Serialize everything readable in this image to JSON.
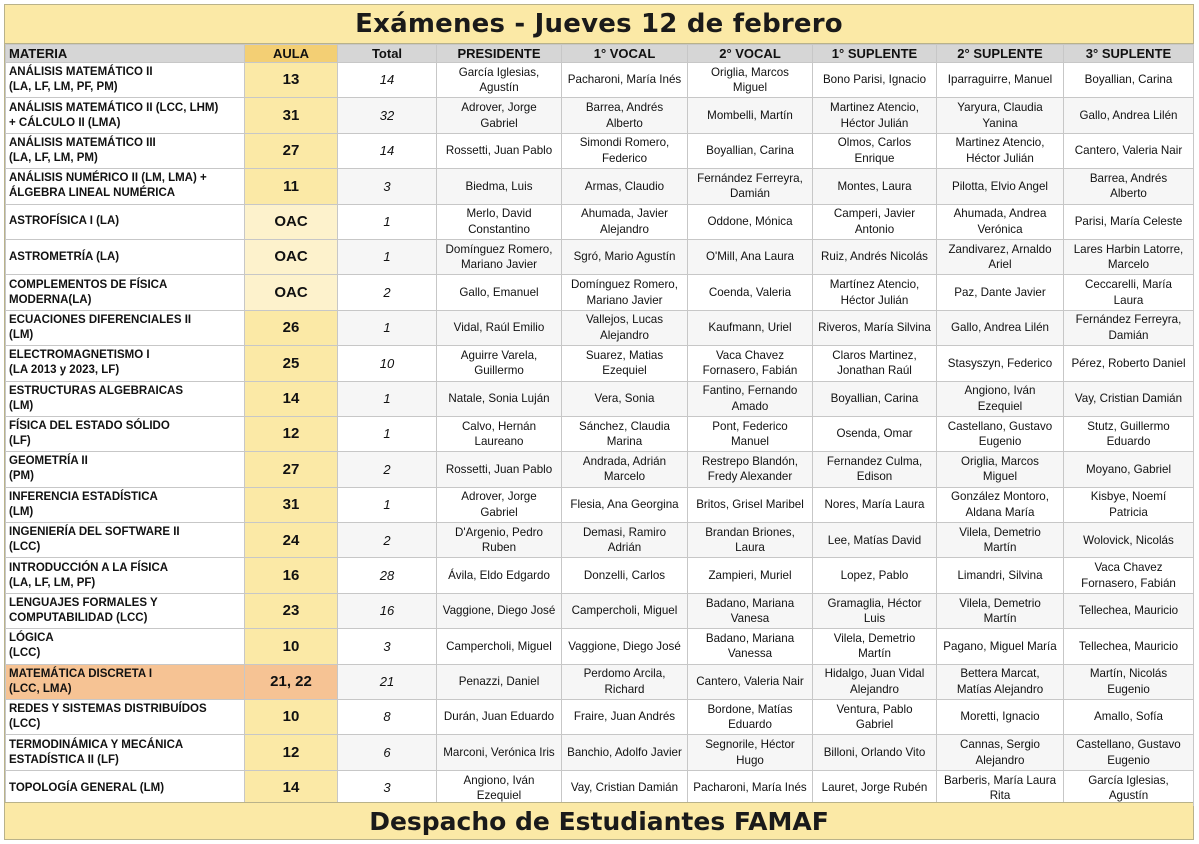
{
  "title": "Exámenes - Jueves 12 de febrero",
  "footer": "Despacho de Estudiantes FAMAF",
  "colors": {
    "header_bg": "#fbe9a6",
    "aula_bg": "#f3cf74",
    "highlight_bg": "#f6c394"
  },
  "headers": [
    "MATERIA",
    "AULA",
    "Total",
    "PRESIDENTE",
    "1° VOCAL",
    "2° VOCAL",
    "1° SUPLENTE",
    "2° SUPLENTE",
    "3° SUPLENTE"
  ],
  "rows": [
    {
      "materia": [
        "ANÁLISIS MATEMÁTICO II",
        "(LA, LF, LM, PF, PM)"
      ],
      "aula": "13",
      "total": "14",
      "presidente": [
        "García Iglesias,",
        "Agustín"
      ],
      "vocal1": [
        "Pacharoni, María Inés"
      ],
      "vocal2": [
        "Origlia, Marcos",
        "Miguel"
      ],
      "suplente1": [
        "Bono Parisi, Ignacio"
      ],
      "suplente2": [
        "Iparraguirre, Manuel"
      ],
      "suplente3": [
        "Boyallian, Carina"
      ]
    },
    {
      "materia": [
        "ANÁLISIS MATEMÁTICO II (LCC, LHM)",
        "+ CÁLCULO II (LMA)"
      ],
      "aula": "31",
      "total": "32",
      "presidente": [
        "Adrover, Jorge",
        "Gabriel"
      ],
      "vocal1": [
        "Barrea, Andrés",
        "Alberto"
      ],
      "vocal2": [
        "Mombelli, Martín"
      ],
      "suplente1": [
        "Martinez Atencio,",
        "Héctor Julián"
      ],
      "suplente2": [
        "Yaryura, Claudia",
        "Yanina"
      ],
      "suplente3": [
        "Gallo, Andrea Lilén"
      ]
    },
    {
      "materia": [
        "ANÁLISIS MATEMÁTICO III",
        "(LA, LF, LM, PM)"
      ],
      "aula": "27",
      "total": "14",
      "presidente": [
        "Rossetti, Juan Pablo"
      ],
      "vocal1": [
        "Simondi Romero,",
        "Federico"
      ],
      "vocal2": [
        "Boyallian, Carina"
      ],
      "suplente1": [
        "Olmos, Carlos",
        "Enrique"
      ],
      "suplente2": [
        "Martinez Atencio,",
        "Héctor Julián"
      ],
      "suplente3": [
        "Cantero, Valeria Nair"
      ]
    },
    {
      "materia": [
        "ANÁLISIS NUMÉRICO II  (LM, LMA)  +",
        "ÁLGEBRA LINEAL NUMÉRICA"
      ],
      "aula": "11",
      "total": "3",
      "presidente": [
        "Biedma, Luis"
      ],
      "vocal1": [
        "Armas, Claudio"
      ],
      "vocal2": [
        "Fernández Ferreyra,",
        "Damián"
      ],
      "suplente1": [
        "Montes, Laura"
      ],
      "suplente2": [
        "Pilotta, Elvio Angel"
      ],
      "suplente3": [
        "Barrea, Andrés",
        "Alberto"
      ]
    },
    {
      "materia": [
        "ASTROFÍSICA I (LA)"
      ],
      "aula": "OAC",
      "total": "1",
      "presidente": [
        "Merlo, David",
        "Constantino"
      ],
      "vocal1": [
        "Ahumada, Javier",
        "Alejandro"
      ],
      "vocal2": [
        "Oddone, Mónica"
      ],
      "suplente1": [
        "Camperi, Javier",
        "Antonio"
      ],
      "suplente2": [
        "Ahumada, Andrea",
        "Verónica"
      ],
      "suplente3": [
        "Parisi, María Celeste"
      ]
    },
    {
      "materia": [
        "ASTROMETRÍA (LA)"
      ],
      "aula": "OAC",
      "total": "1",
      "presidente": [
        "Domínguez Romero,",
        "Mariano Javier"
      ],
      "vocal1": [
        "Sgró, Mario Agustín"
      ],
      "vocal2": [
        "O'Mill, Ana Laura"
      ],
      "suplente1": [
        "Ruiz, Andrés Nicolás"
      ],
      "suplente2": [
        "Zandivarez, Arnaldo",
        "Ariel"
      ],
      "suplente3": [
        "Lares Harbin Latorre,",
        "Marcelo"
      ]
    },
    {
      "materia": [
        "COMPLEMENTOS DE FÍSICA",
        "MODERNA(LA)"
      ],
      "aula": "OAC",
      "total": "2",
      "presidente": [
        "Gallo, Emanuel"
      ],
      "vocal1": [
        "Domínguez Romero,",
        "Mariano  Javier"
      ],
      "vocal2": [
        "Coenda, Valeria"
      ],
      "suplente1": [
        "Martínez Atencio,",
        "Héctor Julián"
      ],
      "suplente2": [
        "Paz, Dante Javier"
      ],
      "suplente3": [
        "Ceccarelli, María",
        "Laura"
      ]
    },
    {
      "materia": [
        "ECUACIONES DIFERENCIALES II",
        "(LM)"
      ],
      "aula": "26",
      "total": "1",
      "presidente": [
        "Vidal, Raúl Emilio"
      ],
      "vocal1": [
        "Vallejos, Lucas",
        "Alejandro"
      ],
      "vocal2": [
        "Kaufmann, Uriel"
      ],
      "suplente1": [
        "Riveros, María Silvina"
      ],
      "suplente2": [
        "Gallo, Andrea Lilén"
      ],
      "suplente3": [
        "Fernández Ferreyra,",
        "Damián"
      ]
    },
    {
      "materia": [
        "ELECTROMAGNETISMO I",
        "(LA 2013 y 2023, LF)"
      ],
      "aula": "25",
      "total": "10",
      "presidente": [
        "Aguirre Varela,",
        "Guillermo"
      ],
      "vocal1": [
        "Suarez, Matias",
        "Ezequiel"
      ],
      "vocal2": [
        "Vaca Chavez",
        "Fornasero, Fabián"
      ],
      "suplente1": [
        "Claros Martinez,",
        "Jonathan Raúl"
      ],
      "suplente2": [
        "Stasyszyn, Federico"
      ],
      "suplente3": [
        "Pérez, Roberto Daniel"
      ]
    },
    {
      "materia": [
        "ESTRUCTURAS ALGEBRAICAS",
        "(LM)"
      ],
      "aula": "14",
      "total": "1",
      "presidente": [
        "Natale, Sonia Luján"
      ],
      "vocal1": [
        "Vera, Sonia"
      ],
      "vocal2": [
        "Fantino, Fernando",
        "Amado"
      ],
      "suplente1": [
        "Boyallian, Carina"
      ],
      "suplente2": [
        "Angiono, Iván",
        "Ezequiel"
      ],
      "suplente3": [
        "Vay, Cristian Damián"
      ]
    },
    {
      "materia": [
        "FÍSICA DEL ESTADO SÓLIDO",
        "(LF)"
      ],
      "aula": "12",
      "total": "1",
      "presidente": [
        "Calvo, Hernán",
        "Laureano"
      ],
      "vocal1": [
        "Sánchez, Claudia",
        "Marina"
      ],
      "vocal2": [
        "Pont, Federico",
        "Manuel"
      ],
      "suplente1": [
        "Osenda, Omar"
      ],
      "suplente2": [
        "Castellano, Gustavo",
        "Eugenio"
      ],
      "suplente3": [
        "Stutz, Guillermo",
        "Eduardo"
      ]
    },
    {
      "materia": [
        "GEOMETRÍA II",
        "(PM)"
      ],
      "aula": "27",
      "total": "2",
      "presidente": [
        "Rossetti, Juan Pablo"
      ],
      "vocal1": [
        "Andrada, Adrián",
        "Marcelo"
      ],
      "vocal2": [
        "Restrepo Blandón,",
        "Fredy Alexander"
      ],
      "suplente1": [
        "Fernandez Culma,",
        "Edison"
      ],
      "suplente2": [
        "Origlia, Marcos",
        "Miguel"
      ],
      "suplente3": [
        "Moyano, Gabriel"
      ]
    },
    {
      "materia": [
        "INFERENCIA ESTADÍSTICA",
        "(LM)"
      ],
      "aula": "31",
      "total": "1",
      "presidente": [
        "Adrover, Jorge",
        "Gabriel"
      ],
      "vocal1": [
        "Flesia, Ana Georgina"
      ],
      "vocal2": [
        "Britos, Grisel Maribel"
      ],
      "suplente1": [
        "Nores, María Laura"
      ],
      "suplente2": [
        "González Montoro,",
        "Aldana María"
      ],
      "suplente3": [
        "Kisbye, Noemí",
        "Patricia"
      ]
    },
    {
      "materia": [
        "INGENIERÍA DEL SOFTWARE II",
        "(LCC)"
      ],
      "aula": "24",
      "total": "2",
      "presidente": [
        "D'Argenio, Pedro",
        "Ruben"
      ],
      "vocal1": [
        "Demasi, Ramiro",
        "Adrián"
      ],
      "vocal2": [
        "Brandan Briones,",
        "Laura"
      ],
      "suplente1": [
        "Lee, Matías David"
      ],
      "suplente2": [
        "Vilela, Demetrio",
        "Martín"
      ],
      "suplente3": [
        "Wolovick, Nicolás"
      ]
    },
    {
      "materia": [
        "INTRODUCCIÓN A LA FÍSICA",
        "(LA, LF, LM, PF)"
      ],
      "aula": "16",
      "total": "28",
      "presidente": [
        "Ávila, Eldo Edgardo"
      ],
      "vocal1": [
        "Donzelli, Carlos"
      ],
      "vocal2": [
        "Zampieri, Muriel"
      ],
      "suplente1": [
        "Lopez, Pablo"
      ],
      "suplente2": [
        "Limandri, Silvina"
      ],
      "suplente3": [
        "Vaca Chavez",
        "Fornasero, Fabián"
      ]
    },
    {
      "materia": [
        "LENGUAJES FORMALES Y",
        "COMPUTABILIDAD (LCC)"
      ],
      "aula": "23",
      "total": "16",
      "presidente": [
        "Vaggione, Diego José"
      ],
      "vocal1": [
        "Campercholi, Miguel"
      ],
      "vocal2": [
        "Badano, Mariana",
        "Vanesa"
      ],
      "suplente1": [
        "Gramaglia, Héctor",
        "Luis"
      ],
      "suplente2": [
        "Vilela, Demetrio",
        "Martín"
      ],
      "suplente3": [
        "Tellechea, Mauricio"
      ]
    },
    {
      "materia": [
        "LÓGICA",
        "(LCC)"
      ],
      "aula": "10",
      "total": "3",
      "presidente": [
        "Campercholi, Miguel"
      ],
      "vocal1": [
        "Vaggione, Diego José"
      ],
      "vocal2": [
        "Badano, Mariana",
        "Vanessa"
      ],
      "suplente1": [
        "Vilela, Demetrio",
        "Martín"
      ],
      "suplente2": [
        "Pagano, Miguel María"
      ],
      "suplente3": [
        "Tellechea, Mauricio"
      ]
    },
    {
      "materia": [
        "MATEMÁTICA DISCRETA I",
        "(LCC, LMA)"
      ],
      "aula": "21, 22",
      "total": "21",
      "highlight": true,
      "presidente": [
        "Penazzi, Daniel"
      ],
      "vocal1": [
        "Perdomo Arcila,",
        "Richard"
      ],
      "vocal2": [
        "Cantero, Valeria Nair"
      ],
      "suplente1": [
        "Hidalgo, Juan Vidal",
        "Alejandro"
      ],
      "suplente2": [
        "Bettera Marcat,",
        "Matías Alejandro"
      ],
      "suplente3": [
        "Martín, Nicolás",
        "Eugenio"
      ]
    },
    {
      "materia": [
        "REDES Y SISTEMAS DISTRIBUÍDOS",
        "(LCC)"
      ],
      "aula": "10",
      "total": "8",
      "presidente": [
        "Durán, Juan Eduardo"
      ],
      "vocal1": [
        "Fraire, Juan Andrés"
      ],
      "vocal2": [
        "Bordone, Matías",
        "Eduardo"
      ],
      "suplente1": [
        "Ventura, Pablo",
        "Gabriel"
      ],
      "suplente2": [
        "Moretti, Ignacio"
      ],
      "suplente3": [
        "Amallo, Sofía"
      ]
    },
    {
      "materia": [
        "TERMODINÁMICA Y MECÁNICA",
        "ESTADÍSTICA II (LF)"
      ],
      "aula": "12",
      "total": "6",
      "presidente": [
        "Marconi, Verónica Iris"
      ],
      "vocal1": [
        "Banchio, Adolfo Javier"
      ],
      "vocal2": [
        "Segnorile, Héctor",
        "Hugo"
      ],
      "suplente1": [
        "Billoni, Orlando Vito"
      ],
      "suplente2": [
        "Cannas, Sergio",
        "Alejandro"
      ],
      "suplente3": [
        "Castellano, Gustavo",
        "Eugenio"
      ]
    },
    {
      "materia": [
        "TOPOLOGÍA GENERAL  (LM)"
      ],
      "aula": "14",
      "total": "3",
      "presidente": [
        "Angiono, Iván",
        "Ezequiel"
      ],
      "vocal1": [
        "Vay, Cristian Damián"
      ],
      "vocal2": [
        "Pacharoni, María Inés"
      ],
      "suplente1": [
        "Lauret, Jorge Rubén"
      ],
      "suplente2": [
        "Barberis, María Laura",
        "Rita"
      ],
      "suplente3": [
        "García Iglesias,",
        "Agustín"
      ]
    }
  ]
}
